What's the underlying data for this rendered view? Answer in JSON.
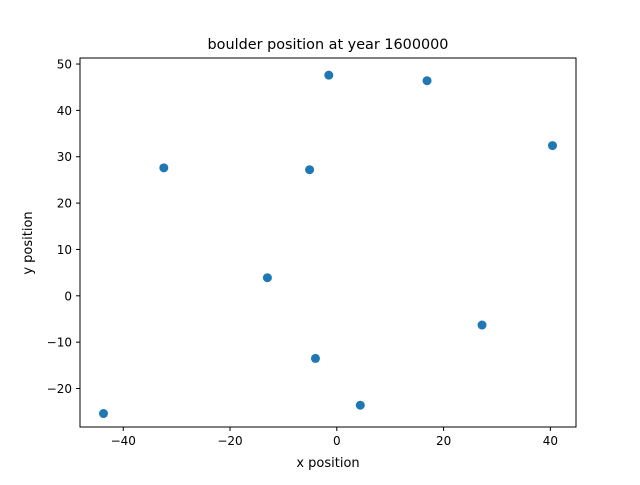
{
  "chart_data": {
    "type": "scatter",
    "title": "boulder position at year 1600000",
    "xlabel": "x position",
    "ylabel": "y position",
    "xlim": [
      -48.1,
      44.8
    ],
    "ylim": [
      -28.3,
      51.3
    ],
    "xticks": [
      -40,
      -20,
      0,
      20,
      40
    ],
    "yticks": [
      -20,
      -10,
      0,
      10,
      20,
      30,
      40,
      50
    ],
    "xtick_labels": [
      "−40",
      "−20",
      "0",
      "20",
      "40"
    ],
    "ytick_labels": [
      "−20",
      "−10",
      "0",
      "10",
      "20",
      "30",
      "40",
      "50"
    ],
    "grid": false,
    "marker_color": "#1f77b4",
    "points": [
      {
        "x": -1.5,
        "y": 47.6
      },
      {
        "x": 16.9,
        "y": 46.4
      },
      {
        "x": 40.4,
        "y": 32.4
      },
      {
        "x": -32.4,
        "y": 27.6
      },
      {
        "x": -5.1,
        "y": 27.2
      },
      {
        "x": -13.0,
        "y": 3.9
      },
      {
        "x": 27.2,
        "y": -6.3
      },
      {
        "x": -4.0,
        "y": -13.5
      },
      {
        "x": 4.4,
        "y": -23.6
      },
      {
        "x": -43.7,
        "y": -25.4
      }
    ]
  }
}
